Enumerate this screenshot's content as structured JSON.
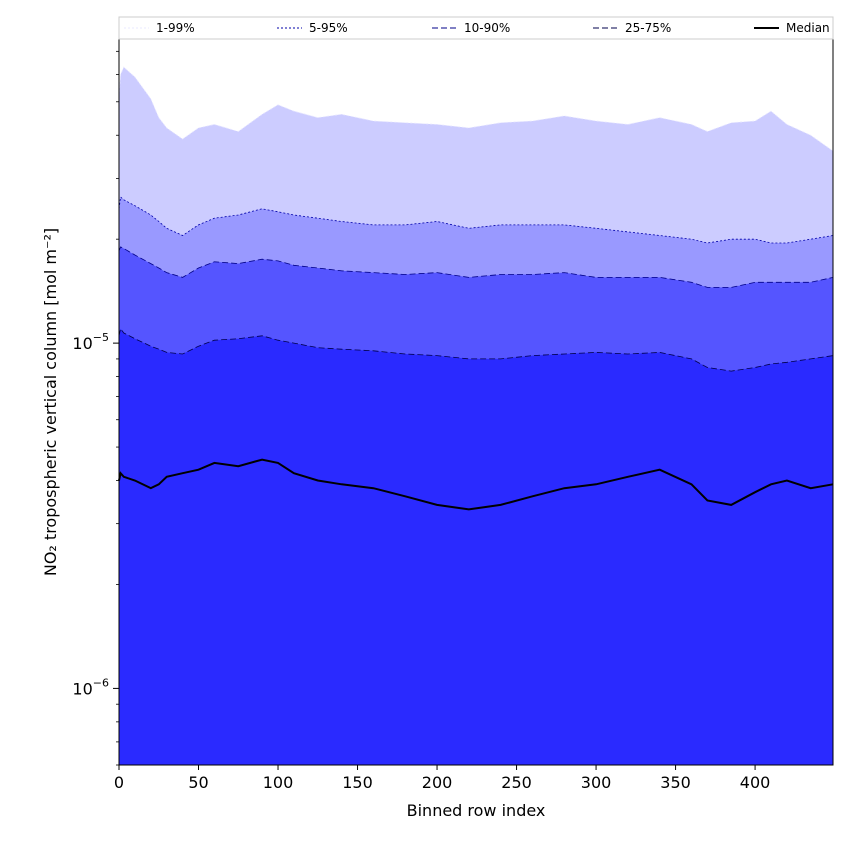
{
  "chart_data": {
    "type": "area",
    "xlabel": "Binned row index",
    "ylabel": "NO₂ tropospheric vertical column [mol m⁻²]",
    "xlim": [
      0,
      449
    ],
    "ylim": [
      6e-07,
      7.6e-05
    ],
    "yscale": "log",
    "x_ticks": [
      0,
      50,
      100,
      150,
      200,
      250,
      300,
      350,
      400
    ],
    "y_ticks": [
      {
        "value": 1e-05,
        "base": "10",
        "exp": "−5"
      },
      {
        "value": 1e-06,
        "base": "10",
        "exp": "−6"
      }
    ],
    "legend_position": "top",
    "x_points": [
      0,
      1,
      3,
      10,
      20,
      25,
      30,
      40,
      50,
      60,
      75,
      90,
      100,
      110,
      125,
      140,
      160,
      180,
      200,
      220,
      240,
      260,
      280,
      300,
      320,
      340,
      360,
      370,
      385,
      400,
      410,
      420,
      435,
      449
    ],
    "series": [
      {
        "name": "1-99%",
        "color": "#ccccff",
        "line_color": "#e8e8ff",
        "dash": "2,2",
        "lower": [
          6e-07,
          6e-07,
          6e-07,
          6e-07,
          6e-07,
          6e-07,
          6e-07,
          6e-07,
          6e-07,
          6e-07,
          6e-07,
          6e-07,
          6e-07,
          6e-07,
          6e-07,
          6e-07,
          6e-07,
          6e-07,
          6e-07,
          6e-07,
          6e-07,
          6e-07,
          6e-07,
          6e-07,
          6e-07,
          6e-07,
          6e-07,
          6e-07,
          6e-07,
          6e-07,
          6e-07,
          6e-07,
          6e-07,
          6e-07
        ],
        "upper": [
          5.2e-05,
          6e-05,
          6.3e-05,
          5.9e-05,
          5.1e-05,
          4.5e-05,
          4.2e-05,
          3.9e-05,
          4.2e-05,
          4.3e-05,
          4.1e-05,
          4.6e-05,
          4.9e-05,
          4.7e-05,
          4.5e-05,
          4.6e-05,
          4.4e-05,
          4.35e-05,
          4.3e-05,
          4.2e-05,
          4.35e-05,
          4.4e-05,
          4.55e-05,
          4.4e-05,
          4.3e-05,
          4.5e-05,
          4.3e-05,
          4.1e-05,
          4.35e-05,
          4.4e-05,
          4.7e-05,
          4.3e-05,
          4e-05,
          3.6e-05
        ]
      },
      {
        "name": "5-95%",
        "color": "#9999ff",
        "line_color": "#0000aa",
        "dash": "2,2",
        "lower": [
          6e-07,
          6e-07,
          6e-07,
          6e-07,
          6e-07,
          6e-07,
          6e-07,
          6e-07,
          6e-07,
          6e-07,
          6e-07,
          6e-07,
          6e-07,
          6e-07,
          6e-07,
          6e-07,
          6e-07,
          6e-07,
          6e-07,
          6e-07,
          6e-07,
          6e-07,
          6e-07,
          6e-07,
          6e-07,
          6e-07,
          6e-07,
          6e-07,
          6e-07,
          6e-07,
          6e-07,
          6e-07,
          6e-07,
          6e-07
        ],
        "upper": [
          2.45e-05,
          2.65e-05,
          2.6e-05,
          2.5e-05,
          2.35e-05,
          2.25e-05,
          2.15e-05,
          2.05e-05,
          2.2e-05,
          2.3e-05,
          2.35e-05,
          2.45e-05,
          2.4e-05,
          2.35e-05,
          2.3e-05,
          2.25e-05,
          2.2e-05,
          2.2e-05,
          2.25e-05,
          2.15e-05,
          2.2e-05,
          2.2e-05,
          2.2e-05,
          2.15e-05,
          2.1e-05,
          2.05e-05,
          2e-05,
          1.95e-05,
          2e-05,
          2e-05,
          1.95e-05,
          1.95e-05,
          2e-05,
          2.05e-05
        ]
      },
      {
        "name": "10-90%",
        "color": "#5555ff",
        "line_color": "#000088",
        "dash": "6,3",
        "lower": [
          6e-07,
          6e-07,
          6e-07,
          6e-07,
          6e-07,
          6e-07,
          6e-07,
          6e-07,
          6e-07,
          6e-07,
          6e-07,
          6e-07,
          6e-07,
          6e-07,
          6e-07,
          6e-07,
          6e-07,
          6e-07,
          6e-07,
          6e-07,
          6e-07,
          6e-07,
          6e-07,
          6e-07,
          6e-07,
          6e-07,
          6e-07,
          6e-07,
          6e-07,
          6e-07,
          6e-07,
          6e-07,
          6e-07,
          6e-07
        ],
        "upper": [
          1.85e-05,
          1.9e-05,
          1.88e-05,
          1.8e-05,
          1.7e-05,
          1.65e-05,
          1.6e-05,
          1.55e-05,
          1.65e-05,
          1.72e-05,
          1.7e-05,
          1.75e-05,
          1.73e-05,
          1.68e-05,
          1.65e-05,
          1.62e-05,
          1.6e-05,
          1.58e-05,
          1.6e-05,
          1.55e-05,
          1.58e-05,
          1.58e-05,
          1.6e-05,
          1.55e-05,
          1.55e-05,
          1.55e-05,
          1.5e-05,
          1.45e-05,
          1.45e-05,
          1.5e-05,
          1.5e-05,
          1.5e-05,
          1.5e-05,
          1.55e-05
        ]
      },
      {
        "name": "25-75%",
        "color": "#2a2aff",
        "line_color": "#00004d",
        "dash": "6,3",
        "lower": [
          6e-07,
          6e-07,
          6e-07,
          6e-07,
          6e-07,
          6e-07,
          6e-07,
          6e-07,
          6e-07,
          6e-07,
          6e-07,
          6e-07,
          6e-07,
          6e-07,
          6e-07,
          6e-07,
          6e-07,
          6e-07,
          6e-07,
          6e-07,
          6e-07,
          6e-07,
          6e-07,
          6e-07,
          6e-07,
          6e-07,
          6e-07,
          6e-07,
          6e-07,
          6e-07,
          6e-07,
          6e-07,
          6e-07,
          6e-07
        ],
        "upper": [
          1.05e-05,
          1.1e-05,
          1.07e-05,
          1.03e-05,
          9.8e-06,
          9.6e-06,
          9.4e-06,
          9.3e-06,
          9.8e-06,
          1.02e-05,
          1.03e-05,
          1.05e-05,
          1.02e-05,
          1e-05,
          9.7e-06,
          9.6e-06,
          9.5e-06,
          9.3e-06,
          9.2e-06,
          9e-06,
          9e-06,
          9.2e-06,
          9.3e-06,
          9.4e-06,
          9.3e-06,
          9.4e-06,
          9e-06,
          8.5e-06,
          8.3e-06,
          8.5e-06,
          8.7e-06,
          8.8e-06,
          9e-06,
          9.2e-06
        ]
      }
    ],
    "median": {
      "name": "Median",
      "color": "#000000",
      "values": [
        4e-06,
        4.2e-06,
        4.1e-06,
        4e-06,
        3.8e-06,
        3.9e-06,
        4.1e-06,
        4.2e-06,
        4.3e-06,
        4.5e-06,
        4.4e-06,
        4.6e-06,
        4.5e-06,
        4.2e-06,
        4e-06,
        3.9e-06,
        3.8e-06,
        3.6e-06,
        3.4e-06,
        3.3e-06,
        3.4e-06,
        3.6e-06,
        3.8e-06,
        3.9e-06,
        4.1e-06,
        4.3e-06,
        3.9e-06,
        3.5e-06,
        3.4e-06,
        3.7e-06,
        3.9e-06,
        4e-06,
        3.8e-06,
        3.9e-06
      ]
    }
  }
}
